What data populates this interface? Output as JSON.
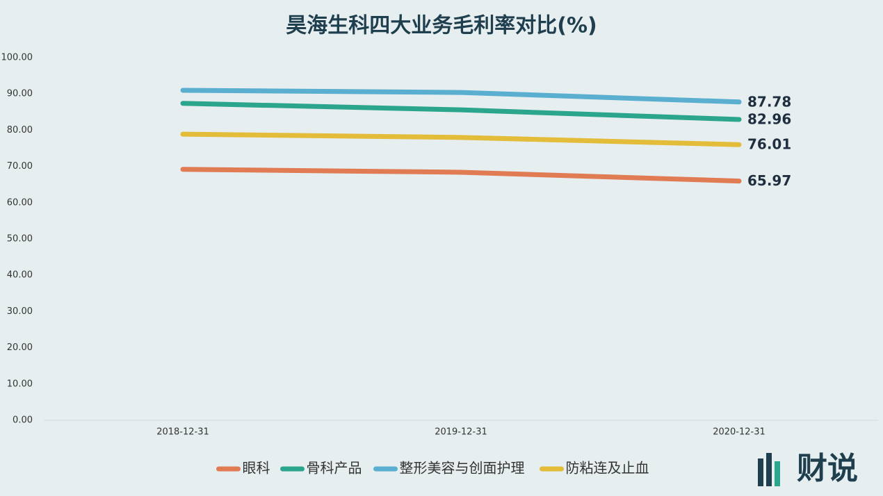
{
  "chart_data": {
    "type": "line",
    "title": "昊海生科四大业务毛利率对比(%)",
    "categories": [
      "2018-12-31",
      "2019-12-31",
      "2020-12-31"
    ],
    "series": [
      {
        "name": "眼科",
        "color": "#e07b54",
        "values": [
          69.2,
          68.4,
          65.97
        ]
      },
      {
        "name": "骨科产品",
        "color": "#2ca58d",
        "values": [
          87.4,
          85.6,
          82.96
        ]
      },
      {
        "name": "整形美容与创面护理",
        "color": "#5aaecf",
        "values": [
          91.0,
          90.4,
          87.78
        ]
      },
      {
        "name": "防粘连及止血",
        "color": "#e3bc3a",
        "values": [
          78.9,
          78.0,
          76.01
        ]
      }
    ],
    "ylim": [
      0,
      100
    ],
    "yticks": [
      {
        "value": 0,
        "label": "0.00"
      },
      {
        "value": 10,
        "label": "10.00"
      },
      {
        "value": 20,
        "label": "20.00"
      },
      {
        "value": 30,
        "label": "30.00"
      },
      {
        "value": 40,
        "label": "40.00"
      },
      {
        "value": 50,
        "label": "50.00"
      },
      {
        "value": 60,
        "label": "60.00"
      },
      {
        "value": 70,
        "label": "70.00"
      },
      {
        "value": 80,
        "label": "80.00"
      },
      {
        "value": 90,
        "label": "90.00"
      },
      {
        "value": 100,
        "label": "100.00"
      }
    ],
    "legend": "bottom"
  },
  "brand": "财说"
}
